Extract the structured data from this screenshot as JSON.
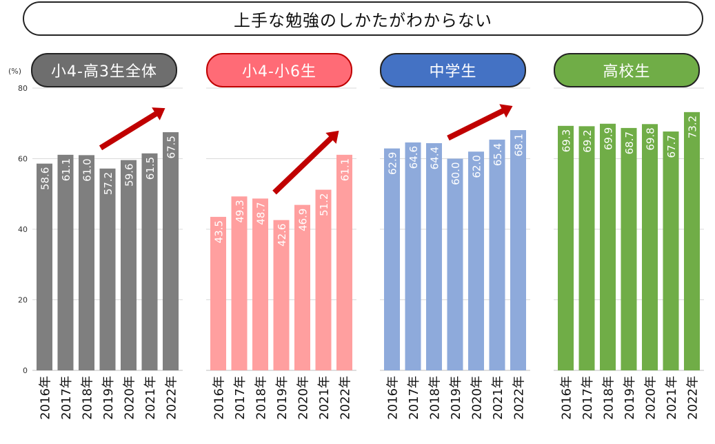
{
  "title": "上手な勉強のしかたがわからない",
  "unit": "(%)",
  "y_ticks": [
    "0",
    "20",
    "40",
    "60",
    "80"
  ],
  "chart_data": [
    {
      "type": "bar",
      "title": "小4-高3生全体",
      "categories": [
        "2016年",
        "2017年",
        "2018年",
        "2019年",
        "2020年",
        "2021年",
        "2022年"
      ],
      "values": [
        58.6,
        61.1,
        61.0,
        57.2,
        59.6,
        61.5,
        67.5
      ],
      "labels": [
        "58.6",
        "61.1",
        "61.0",
        "57.2",
        "59.6",
        "61.5",
        "67.5"
      ],
      "ylim": [
        0,
        80
      ],
      "color": "#7f7f7f",
      "header_color": "#6e6e6e",
      "trend_arrow": true
    },
    {
      "type": "bar",
      "title": "小4-小6生",
      "categories": [
        "2016年",
        "2017年",
        "2018年",
        "2019年",
        "2020年",
        "2021年",
        "2022年"
      ],
      "values": [
        43.5,
        49.3,
        48.7,
        42.6,
        46.9,
        51.2,
        61.1
      ],
      "labels": [
        "43.5",
        "49.3",
        "48.7",
        "42.6",
        "46.9",
        "51.2",
        "61.1"
      ],
      "ylim": [
        0,
        80
      ],
      "color": "#ff9f9f",
      "header_color": "#ff6b76",
      "trend_arrow": true
    },
    {
      "type": "bar",
      "title": "中学生",
      "categories": [
        "2016年",
        "2017年",
        "2018年",
        "2019年",
        "2020年",
        "2021年",
        "2022年"
      ],
      "values": [
        62.9,
        64.6,
        64.4,
        60.0,
        62.0,
        65.4,
        68.1
      ],
      "labels": [
        "62.9",
        "64.6",
        "64.4",
        "60.0",
        "62.0",
        "65.4",
        "68.1"
      ],
      "ylim": [
        0,
        80
      ],
      "color": "#8eaadb",
      "header_color": "#4472c4",
      "trend_arrow": true
    },
    {
      "type": "bar",
      "title": "高校生",
      "categories": [
        "2016年",
        "2017年",
        "2018年",
        "2019年",
        "2020年",
        "2021年",
        "2022年"
      ],
      "values": [
        69.3,
        69.2,
        69.9,
        68.7,
        69.8,
        67.7,
        73.2
      ],
      "labels": [
        "69.3",
        "69.2",
        "69.9",
        "68.7",
        "69.8",
        "67.7",
        "73.2"
      ],
      "ylim": [
        0,
        80
      ],
      "color": "#70ad47",
      "header_color": "#70ad47",
      "trend_arrow": false
    }
  ]
}
